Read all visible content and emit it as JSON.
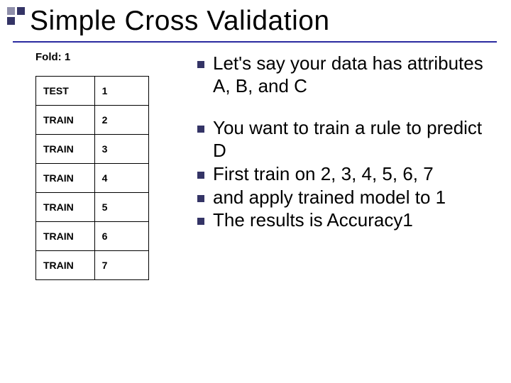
{
  "decor_colors": {
    "tl": "#8f8faa",
    "tr": "#343466",
    "bl": "#343466"
  },
  "title": "Simple Cross Validation",
  "fold_label": "Fold: 1",
  "table": {
    "rows": [
      {
        "label": "TEST",
        "num": "1"
      },
      {
        "label": "TRAIN",
        "num": "2"
      },
      {
        "label": "TRAIN",
        "num": "3"
      },
      {
        "label": "TRAIN",
        "num": "4"
      },
      {
        "label": "TRAIN",
        "num": "5"
      },
      {
        "label": "TRAIN",
        "num": "6"
      },
      {
        "label": "TRAIN",
        "num": "7"
      }
    ]
  },
  "bullets_a": [
    "Let's say your data has attributes A, B, and C"
  ],
  "bullets_b": [
    "You want to train a rule to predict D",
    "First train on 2, 3, 4, 5, 6, 7",
    "and apply trained model to 1",
    "The results is Accuracy1"
  ]
}
